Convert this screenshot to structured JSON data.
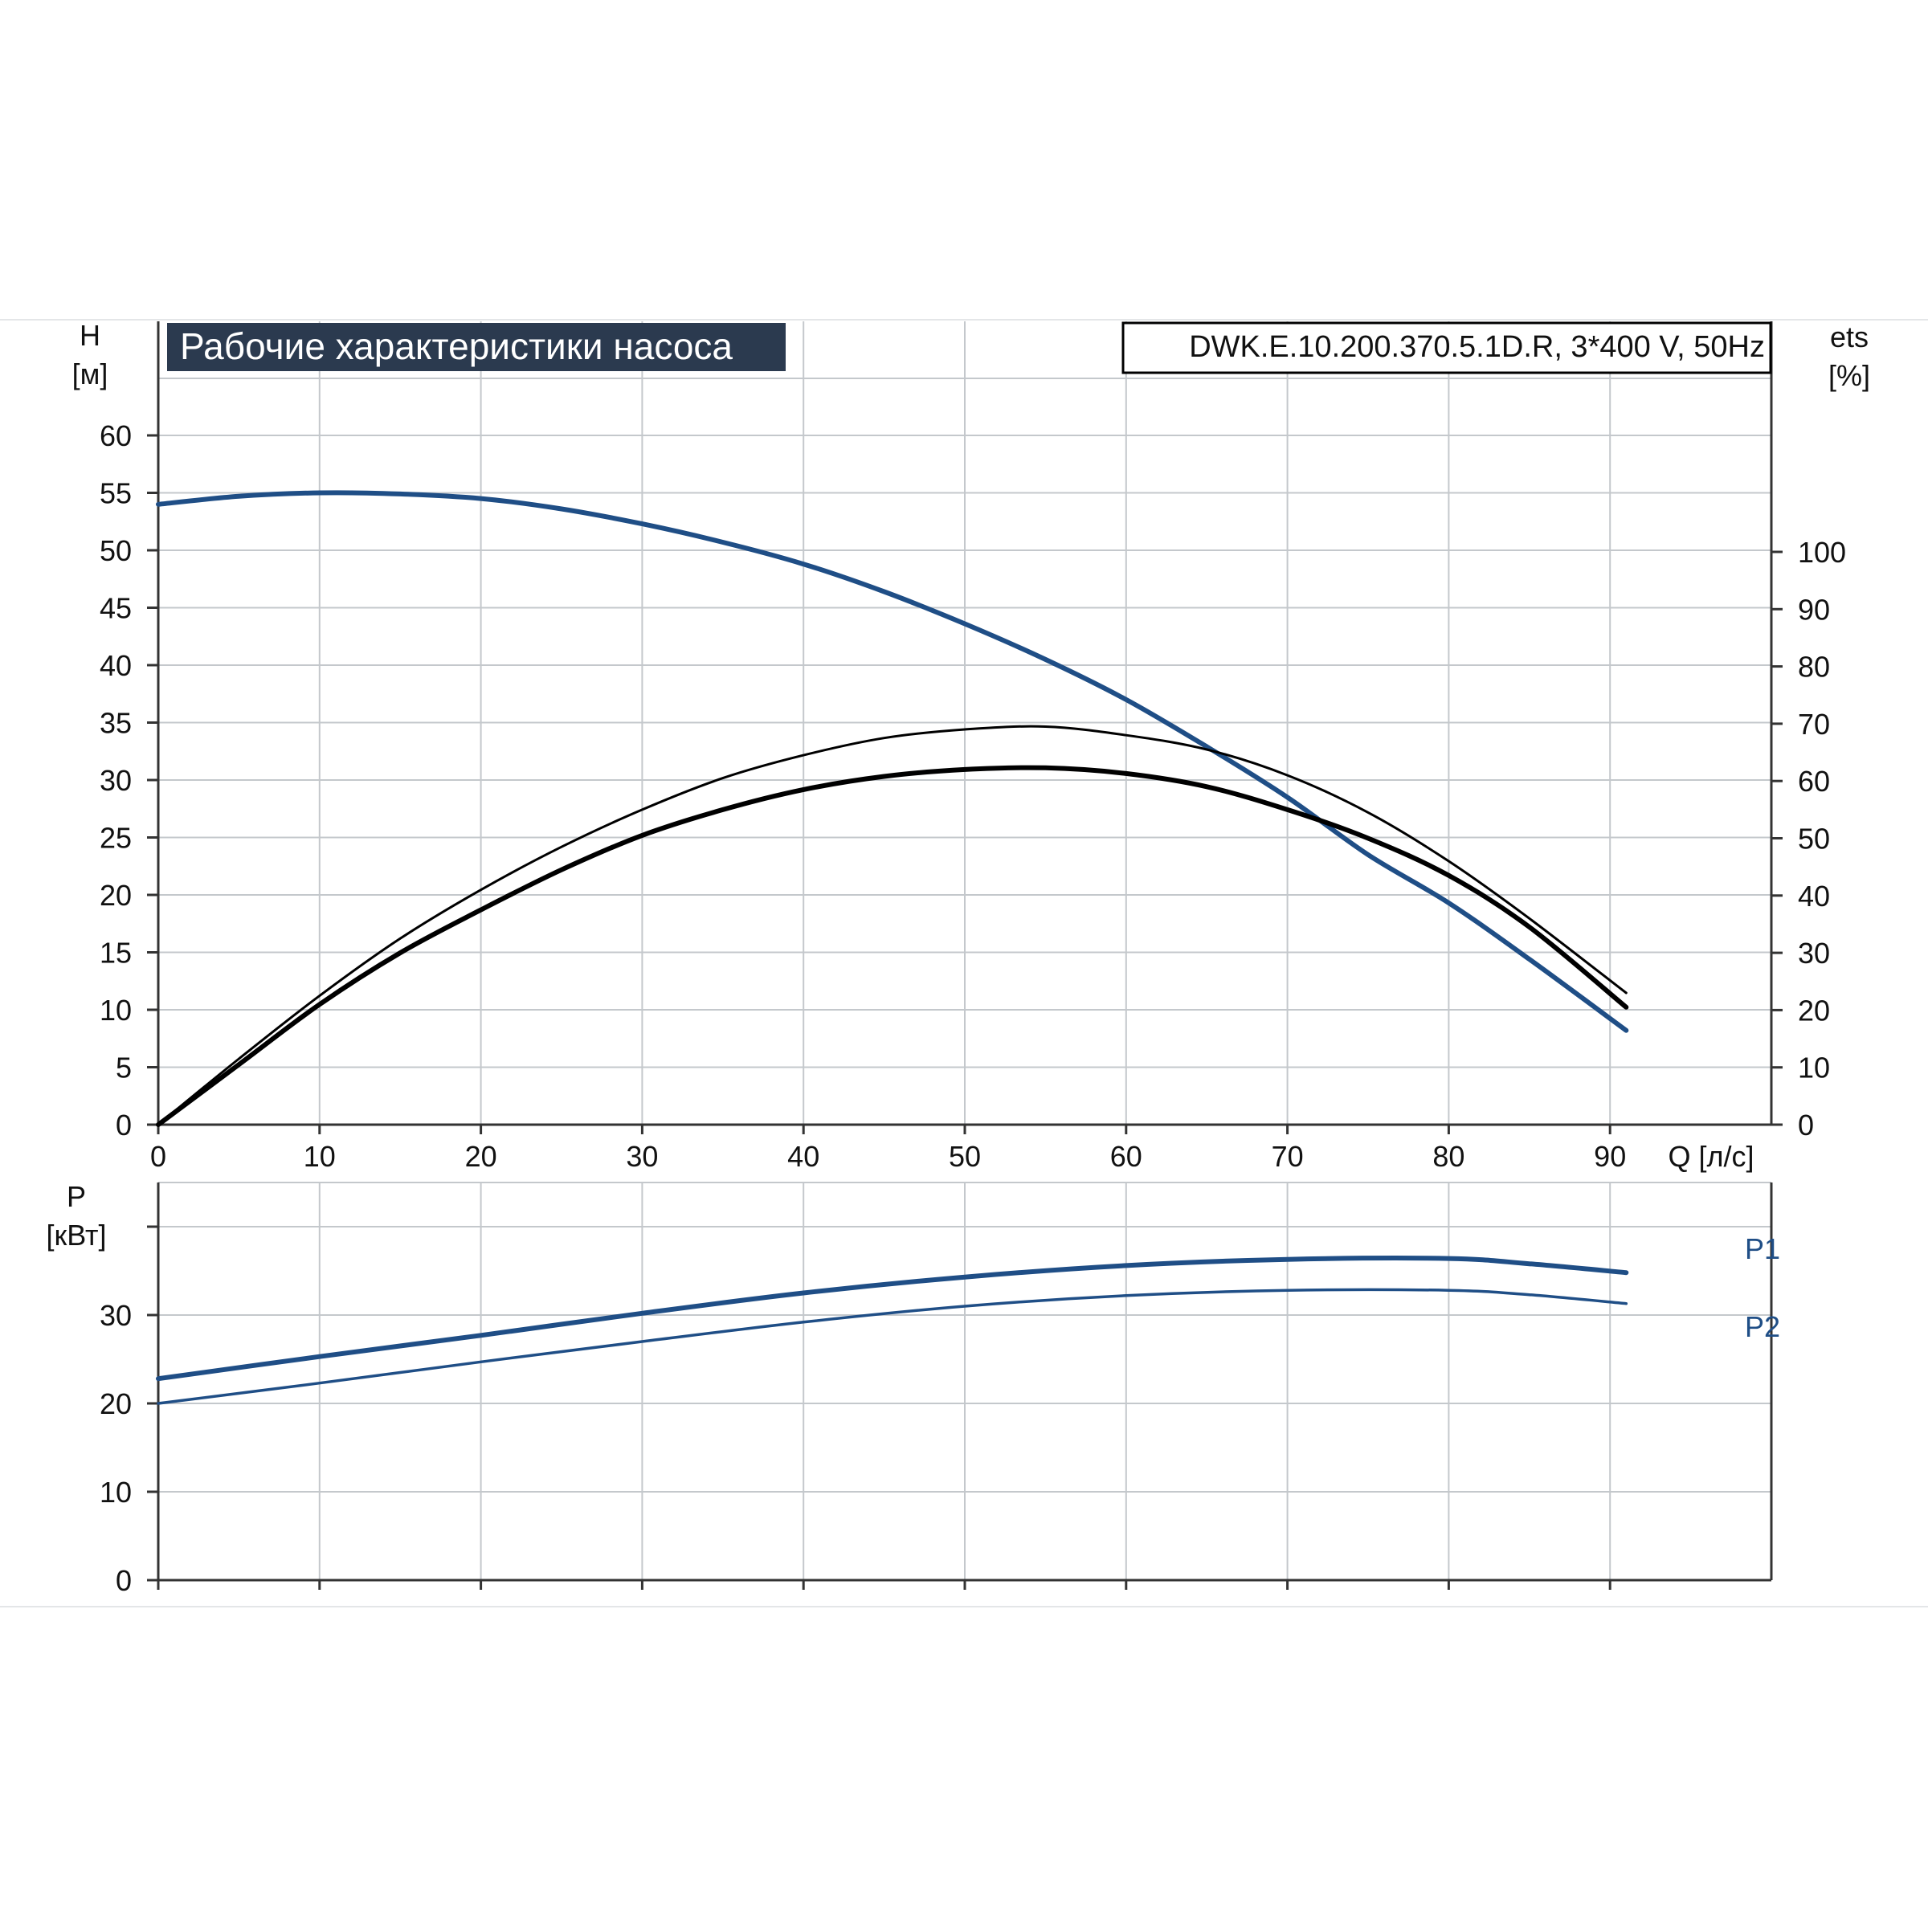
{
  "chart_data": [
    {
      "type": "line",
      "title": "Рабочие характеристики насоса",
      "model": "DWK.E.10.200.370.5.1D.R, 3*400 V, 50Hz",
      "xlabel": "Q [л/с]",
      "ylabel": "H",
      "yunit": "[м]",
      "y2label": "ets",
      "y2unit": "[%]",
      "xlim": [
        0,
        100
      ],
      "ylim": [
        0,
        65
      ],
      "y2lim": [
        0,
        100
      ],
      "xticks": [
        0,
        10,
        20,
        30,
        40,
        50,
        60,
        70,
        80,
        90
      ],
      "yticks": [
        0,
        5,
        10,
        15,
        20,
        25,
        30,
        35,
        40,
        45,
        50,
        55,
        60
      ],
      "y2ticks": [
        0,
        10,
        20,
        30,
        40,
        50,
        60,
        70,
        80,
        90,
        100
      ],
      "grid": true,
      "colors": {
        "head": "#1f4e86",
        "efficiency": "#000000",
        "grid": "#c4c8cc",
        "title_bg": "#2b3a4f"
      },
      "series": [
        {
          "id": "head",
          "axis": "left",
          "x": [
            0,
            5,
            10,
            15,
            20,
            25,
            30,
            35,
            40,
            45,
            50,
            55,
            60,
            65,
            70,
            75,
            80,
            85,
            91
          ],
          "y": [
            54,
            54.7,
            55,
            54.9,
            54.5,
            53.6,
            52.3,
            50.7,
            48.8,
            46.4,
            43.6,
            40.5,
            37,
            32.9,
            28.5,
            23.5,
            19.3,
            14.4,
            8.2
          ]
        },
        {
          "id": "efficiency-1",
          "axis": "right",
          "x": [
            0,
            5,
            10,
            15,
            20,
            25,
            30,
            35,
            40,
            45,
            50,
            55,
            60,
            65,
            70,
            75,
            80,
            85,
            91
          ],
          "y": [
            0,
            11.5,
            22.5,
            32.5,
            41,
            48.5,
            55,
            60.5,
            64.5,
            67.5,
            69,
            69.5,
            68,
            65.5,
            61,
            54.5,
            46,
            36,
            23
          ]
        },
        {
          "id": "efficiency-2",
          "axis": "right",
          "x": [
            0,
            5,
            10,
            15,
            20,
            25,
            30,
            35,
            40,
            45,
            50,
            55,
            60,
            65,
            70,
            75,
            80,
            85,
            91
          ],
          "y": [
            0,
            10.5,
            21,
            30,
            37.5,
            44.5,
            50.5,
            55,
            58.5,
            60.8,
            62,
            62.3,
            61.3,
            59,
            55,
            50,
            43.5,
            34.5,
            20.5
          ]
        }
      ]
    },
    {
      "type": "line",
      "ylabel": "P",
      "yunit": "[кВт]",
      "xlim": [
        0,
        100
      ],
      "ylim": [
        0,
        40
      ],
      "yticks": [
        0,
        10,
        20,
        30
      ],
      "grid": true,
      "series": [
        {
          "name": "P1",
          "x": [
            0,
            10,
            20,
            30,
            40,
            50,
            60,
            70,
            80,
            85,
            91
          ],
          "y": [
            22.8,
            25.3,
            27.7,
            30.2,
            32.5,
            34.3,
            35.6,
            36.3,
            36.4,
            35.8,
            34.8
          ]
        },
        {
          "name": "P2",
          "x": [
            0,
            10,
            20,
            30,
            40,
            50,
            60,
            70,
            80,
            85,
            91
          ],
          "y": [
            20,
            22.3,
            24.7,
            27,
            29.2,
            31,
            32.2,
            32.8,
            32.8,
            32.3,
            31.3
          ]
        }
      ]
    }
  ]
}
